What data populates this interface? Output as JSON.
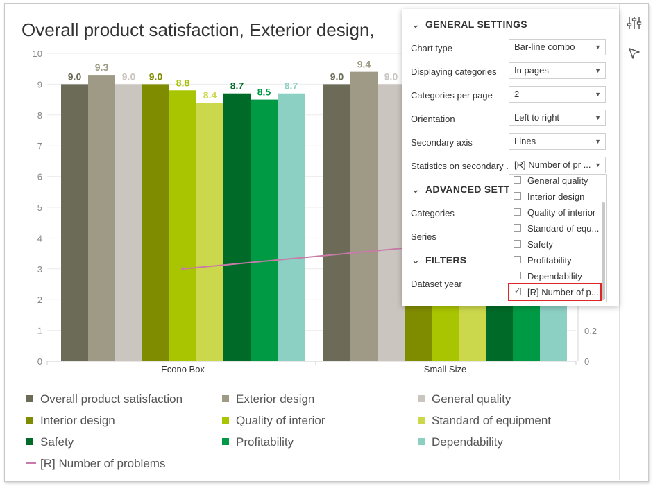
{
  "chart": {
    "title": "Overall product satisfaction, Exterior design,",
    "chart_data": {
      "type": "bar",
      "categories": [
        "Econo Box",
        "Small Size"
      ],
      "ylim": [
        0,
        10
      ],
      "y_ticks": [
        "0",
        "1",
        "2",
        "3",
        "4",
        "5",
        "6",
        "7",
        "8",
        "9",
        "10"
      ],
      "secondary_y_ticks": [
        "0",
        "0.2"
      ],
      "series": [
        {
          "name": "Overall product satisfaction",
          "color": "#6b6b57",
          "values": [
            9.0,
            9.0
          ],
          "labels": [
            "9.0",
            "9.0"
          ]
        },
        {
          "name": "Exterior design",
          "color": "#9f9a86",
          "values": [
            9.3,
            9.4
          ],
          "labels": [
            "9.3",
            "9.4"
          ]
        },
        {
          "name": "General quality",
          "color": "#cbc5c0",
          "values": [
            9.0,
            9.0
          ],
          "labels": [
            "9.0",
            "9.0"
          ]
        },
        {
          "name": "Interior design",
          "color": "#808c00",
          "values": [
            9.0,
            9.0
          ],
          "labels": [
            "9.0",
            ""
          ]
        },
        {
          "name": "Quality of interior",
          "color": "#a9c400",
          "values": [
            8.8,
            8.8
          ],
          "labels": [
            "8.8",
            ""
          ]
        },
        {
          "name": "Standard of equipment",
          "color": "#ccd84b",
          "values": [
            8.4,
            8.4
          ],
          "labels": [
            "8.4",
            ""
          ]
        },
        {
          "name": "Safety",
          "color": "#006a28",
          "values": [
            8.7,
            8.7
          ],
          "labels": [
            "8.7",
            ""
          ]
        },
        {
          "name": "Profitability",
          "color": "#009a44",
          "values": [
            8.5,
            8.5
          ],
          "labels": [
            "8.5",
            ""
          ]
        },
        {
          "name": "Dependability",
          "color": "#8ccfc3",
          "values": [
            8.7,
            8.7
          ],
          "labels": [
            "8.7",
            ""
          ]
        }
      ],
      "line_series": {
        "name": "[R] Number of problems",
        "color": "#c87aa8",
        "values": [
          1.5,
          1.9
        ]
      }
    }
  },
  "legend": {
    "items": [
      {
        "label": "Overall product satisfaction",
        "color": "#6b6b57"
      },
      {
        "label": "Exterior design",
        "color": "#9f9a86"
      },
      {
        "label": "General quality",
        "color": "#cbc5c0"
      },
      {
        "label": "Interior design",
        "color": "#808c00"
      },
      {
        "label": "Quality of interior",
        "color": "#a9c400"
      },
      {
        "label": "Standard of equipment",
        "color": "#ccd84b"
      },
      {
        "label": "Safety",
        "color": "#006a28"
      },
      {
        "label": "Profitability",
        "color": "#009a44"
      },
      {
        "label": "Dependability",
        "color": "#8ccfc3"
      },
      {
        "label": "[R] Number of problems",
        "color": "#c87aa8"
      }
    ]
  },
  "rail": {
    "icons": [
      "sliders-icon",
      "pointer-icon"
    ]
  },
  "panel": {
    "general": {
      "heading": "GENERAL SETTINGS",
      "chart_type_label": "Chart type",
      "chart_type_value": "Bar-line combo",
      "displaying_label": "Displaying categories",
      "displaying_value": "In pages",
      "per_page_label": "Categories per page",
      "per_page_value": "2",
      "orientation_label": "Orientation",
      "orientation_value": "Left to right",
      "secondary_axis_label": "Secondary axis",
      "secondary_axis_value": "Lines",
      "stats_label": "Statistics on secondary ...",
      "stats_value": "[R] Number of pr ..."
    },
    "advanced": {
      "heading": "ADVANCED SETTI",
      "categories_label": "Categories",
      "series_label": "Series"
    },
    "filters": {
      "heading": "FILTERS",
      "dataset_year_label": "Dataset year"
    }
  },
  "dropdown": {
    "options": [
      {
        "label": "General quality",
        "checked": false
      },
      {
        "label": "Interior design",
        "checked": false
      },
      {
        "label": "Quality of interior",
        "checked": false
      },
      {
        "label": "Standard of equ...",
        "checked": false
      },
      {
        "label": "Safety",
        "checked": false
      },
      {
        "label": "Profitability",
        "checked": false
      },
      {
        "label": "Dependability",
        "checked": false
      },
      {
        "label": "[R] Number of p...",
        "checked": true
      }
    ]
  }
}
